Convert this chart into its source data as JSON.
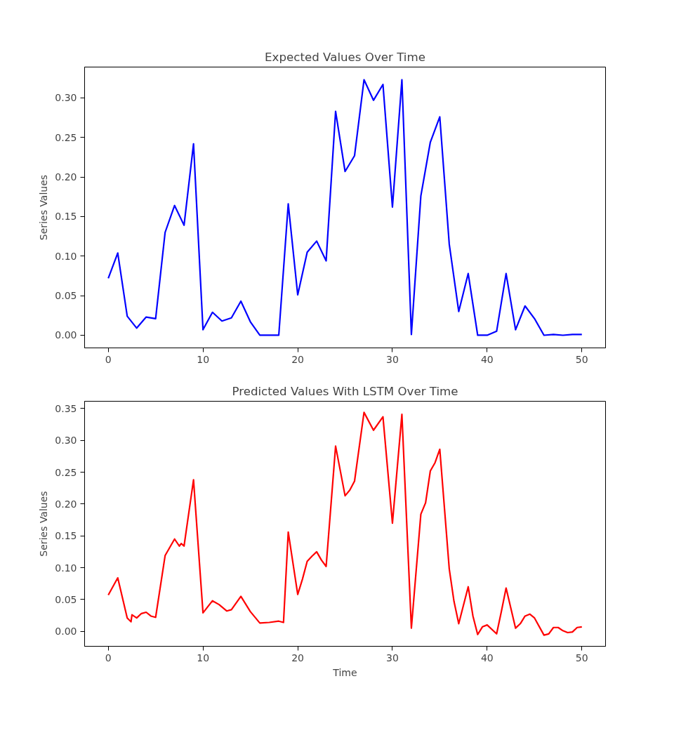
{
  "chart_data": [
    {
      "type": "line",
      "title": "Expected Values Over Time",
      "ylabel": "Series Values",
      "x": [
        0,
        1,
        2,
        3,
        4,
        5,
        6,
        7,
        8,
        9,
        10,
        11,
        12,
        13,
        14,
        15,
        16,
        17,
        18,
        19,
        20,
        21,
        22,
        23,
        24,
        25,
        26,
        27,
        28,
        29,
        30,
        31,
        32,
        33,
        34,
        35,
        36,
        37,
        38,
        39,
        40,
        41,
        42,
        43,
        44,
        45,
        46,
        47,
        48,
        49,
        50
      ],
      "series": [
        {
          "color": "#0000ff",
          "values": [
            0.072,
            0.104,
            0.024,
            0.009,
            0.023,
            0.021,
            0.13,
            0.164,
            0.139,
            0.242,
            0.007,
            0.029,
            0.018,
            0.022,
            0.043,
            0.017,
            0.0,
            0.0,
            0.0,
            0.166,
            0.051,
            0.105,
            0.119,
            0.094,
            0.283,
            0.207,
            0.227,
            0.323,
            0.297,
            0.317,
            0.162,
            0.323,
            0.001,
            0.176,
            0.244,
            0.276,
            0.115,
            0.03,
            0.078,
            0.0,
            0.0,
            0.005,
            0.078,
            0.007,
            0.037,
            0.021,
            0.0,
            0.001,
            0.0,
            0.001,
            0.001
          ]
        }
      ],
      "xlim": [
        -2.5,
        52.5
      ],
      "ylim": [
        -0.016,
        0.339
      ],
      "xticks": [
        0,
        10,
        20,
        30,
        40,
        50
      ],
      "yticks": [
        {
          "value": 0,
          "label": "0.00"
        },
        {
          "value": 0.05,
          "label": "0.05"
        },
        {
          "value": 0.1,
          "label": "0.10"
        },
        {
          "value": 0.15,
          "label": "0.15"
        },
        {
          "value": 0.2,
          "label": "0.20"
        },
        {
          "value": 0.25,
          "label": "0.25"
        },
        {
          "value": 0.3,
          "label": "0.30"
        }
      ],
      "grid": false,
      "line_style": "solid"
    },
    {
      "type": "line",
      "title": "Predicted Values With LSTM Over Time",
      "xlabel": "Time",
      "ylabel": "Series Values",
      "x": [
        0,
        1,
        2,
        2.4,
        2.5,
        3,
        3.5,
        4,
        4.5,
        5,
        6,
        7,
        7.5,
        7.7,
        8,
        9,
        10,
        11,
        11.7,
        12.5,
        13,
        14,
        15,
        16,
        17,
        18,
        18.5,
        19,
        20,
        20.5,
        21,
        21.5,
        22,
        22.5,
        23,
        24,
        25,
        25.5,
        26,
        27,
        28,
        29,
        30,
        31,
        32,
        33,
        33.5,
        34,
        34.5,
        35,
        36,
        36.5,
        37,
        38,
        38.5,
        39,
        39.5,
        40,
        41,
        41.5,
        42,
        43,
        43.5,
        44,
        44.5,
        45,
        46,
        46.5,
        47,
        47.5,
        48,
        48.5,
        49,
        49.5,
        50
      ],
      "series": [
        {
          "color": "#ff0000",
          "values": [
            0.057,
            0.084,
            0.021,
            0.015,
            0.026,
            0.021,
            0.028,
            0.03,
            0.024,
            0.022,
            0.119,
            0.145,
            0.134,
            0.138,
            0.134,
            0.238,
            0.029,
            0.048,
            0.042,
            0.032,
            0.034,
            0.055,
            0.031,
            0.013,
            0.014,
            0.016,
            0.014,
            0.156,
            0.058,
            0.082,
            0.11,
            0.118,
            0.125,
            0.112,
            0.102,
            0.291,
            0.213,
            0.222,
            0.236,
            0.344,
            0.316,
            0.337,
            0.17,
            0.341,
            0.005,
            0.184,
            0.202,
            0.252,
            0.265,
            0.286,
            0.098,
            0.047,
            0.012,
            0.07,
            0.024,
            -0.005,
            0.007,
            0.01,
            -0.004,
            0.031,
            0.068,
            0.005,
            0.012,
            0.024,
            0.027,
            0.021,
            -0.006,
            -0.004,
            0.006,
            0.006,
            0.001,
            -0.002,
            -0.001,
            0.006,
            0.007
          ]
        }
      ],
      "xlim": [
        -2.5,
        52.5
      ],
      "ylim": [
        -0.0235,
        0.3615
      ],
      "xticks": [
        0,
        10,
        20,
        30,
        40,
        50
      ],
      "yticks": [
        {
          "value": 0,
          "label": "0.00"
        },
        {
          "value": 0.05,
          "label": "0.05"
        },
        {
          "value": 0.1,
          "label": "0.10"
        },
        {
          "value": 0.15,
          "label": "0.15"
        },
        {
          "value": 0.2,
          "label": "0.20"
        },
        {
          "value": 0.25,
          "label": "0.25"
        },
        {
          "value": 0.3,
          "label": "0.30"
        },
        {
          "value": 0.35,
          "label": "0.35"
        }
      ],
      "grid": false,
      "line_style": "solid"
    }
  ]
}
